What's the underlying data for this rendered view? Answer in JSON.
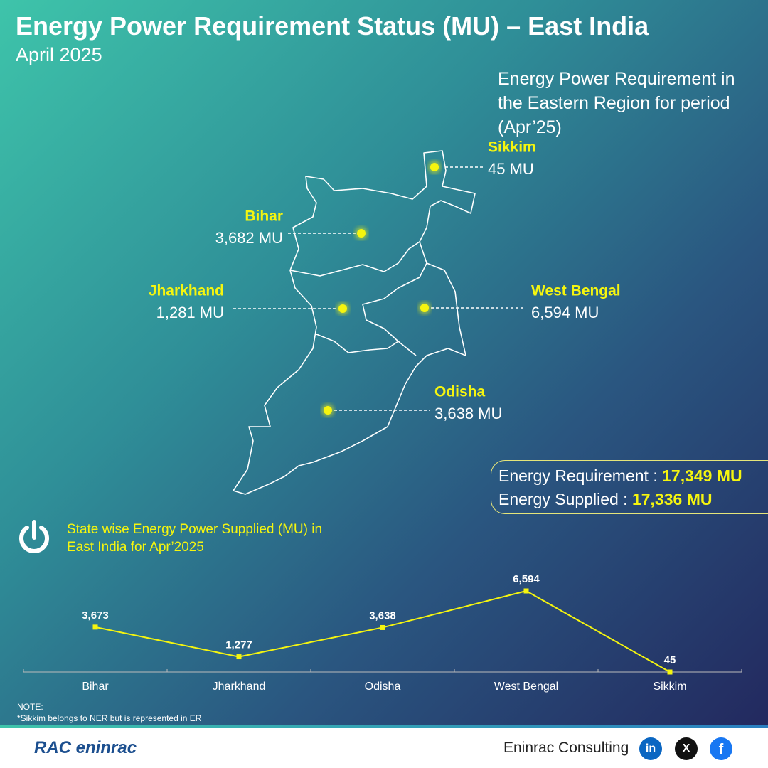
{
  "header": {
    "title": "Energy Power Requirement Status (MU) – East India",
    "subtitle": "April 2025"
  },
  "map": {
    "caption": "Energy Power Requirement in the Eastern Region for period (Apr’25)",
    "states": [
      {
        "name": "Sikkim",
        "value": "45 MU"
      },
      {
        "name": "Bihar",
        "value": "3,682 MU"
      },
      {
        "name": "Jharkhand",
        "value": "1,281 MU"
      },
      {
        "name": "West Bengal",
        "value": "6,594 MU"
      },
      {
        "name": "Odisha",
        "value": "3,638 MU"
      }
    ]
  },
  "summary": {
    "requirement_label": "Energy Requirement : ",
    "requirement_value": "17,349 MU",
    "supplied_label": "Energy Supplied : ",
    "supplied_value": "17,336 MU"
  },
  "chart_data": {
    "type": "line",
    "title": "State wise Energy Power Supplied (MU) in East India for Apr’2025",
    "categories": [
      "Bihar",
      "Jharkhand",
      "Odisha",
      "West Bengal",
      "Sikkim"
    ],
    "values": [
      3673,
      1277,
      3638,
      6594,
      45
    ],
    "value_labels": [
      "3,673",
      "1,277",
      "3,638",
      "6,594",
      "45"
    ],
    "color": "#f5f50f"
  },
  "note": {
    "heading": "NOTE:",
    "text": "*Sikkim belongs to NER but is represented in ER"
  },
  "footer": {
    "logo": "RAC eninrac",
    "company": "Eninrac Consulting",
    "social": [
      "in",
      "X",
      "f"
    ]
  }
}
